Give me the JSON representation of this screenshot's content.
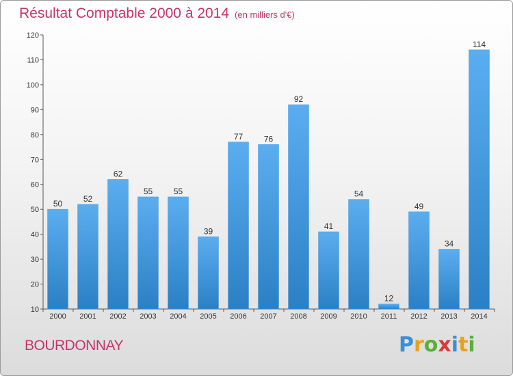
{
  "header": {
    "title": "Résultat Comptable 2000 à 2014",
    "unit": "(en milliers d'€)"
  },
  "commune": "BOURDONNAY",
  "logo": {
    "letters": [
      {
        "char": "P",
        "color": "#3a8fd6"
      },
      {
        "char": "r",
        "color": "#e8a21a"
      },
      {
        "char": "o",
        "color": "#5cae3a"
      },
      {
        "char": "x",
        "color": "#d93a3a"
      },
      {
        "char": "i",
        "color": "#3a8fd6"
      },
      {
        "char": "t",
        "color": "#e8a21a"
      },
      {
        "char": "i",
        "color": "#5cae3a"
      }
    ]
  },
  "colors": {
    "title": "#c8336a",
    "bar_top": "#5aaef0",
    "bar_bottom": "#2b7fc4",
    "axis": "#555555",
    "grid": "#d0d0d0"
  },
  "chart_data": {
    "type": "bar",
    "title": "Résultat Comptable 2000 à 2014",
    "subtitle": "(en milliers d'€)",
    "xlabel": "",
    "ylabel": "",
    "categories": [
      "2000",
      "2001",
      "2002",
      "2003",
      "2004",
      "2005",
      "2006",
      "2007",
      "2008",
      "2009",
      "2010",
      "2011",
      "2012",
      "2013",
      "2014"
    ],
    "values": [
      50,
      52,
      62,
      55,
      55,
      39,
      77,
      76,
      92,
      41,
      54,
      12,
      49,
      34,
      114
    ],
    "ylim": [
      10,
      120
    ],
    "yticks": [
      10,
      20,
      30,
      40,
      50,
      60,
      70,
      80,
      90,
      100,
      110,
      120
    ],
    "grid": false,
    "legend": "none"
  }
}
